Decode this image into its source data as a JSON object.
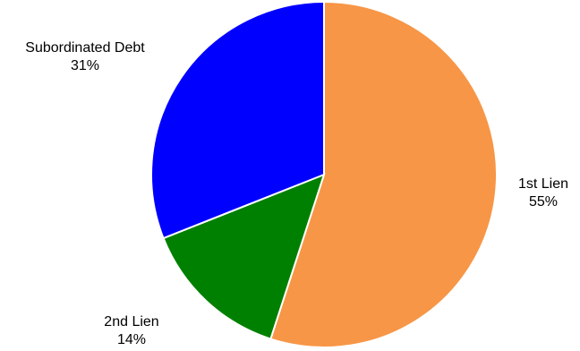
{
  "chart_data": {
    "type": "pie",
    "title": "",
    "slices": [
      {
        "name": "1st Lien",
        "value": 55,
        "label": "55%",
        "color": "#F79646"
      },
      {
        "name": "2nd Lien",
        "value": 14,
        "label": "14%",
        "color": "#008000"
      },
      {
        "name": "Subordinated Debt",
        "value": 31,
        "label": "31%",
        "color": "#0000FF"
      }
    ],
    "start_angle_deg": 0,
    "direction": "clockwise",
    "legend": "none",
    "labels": "outside"
  }
}
